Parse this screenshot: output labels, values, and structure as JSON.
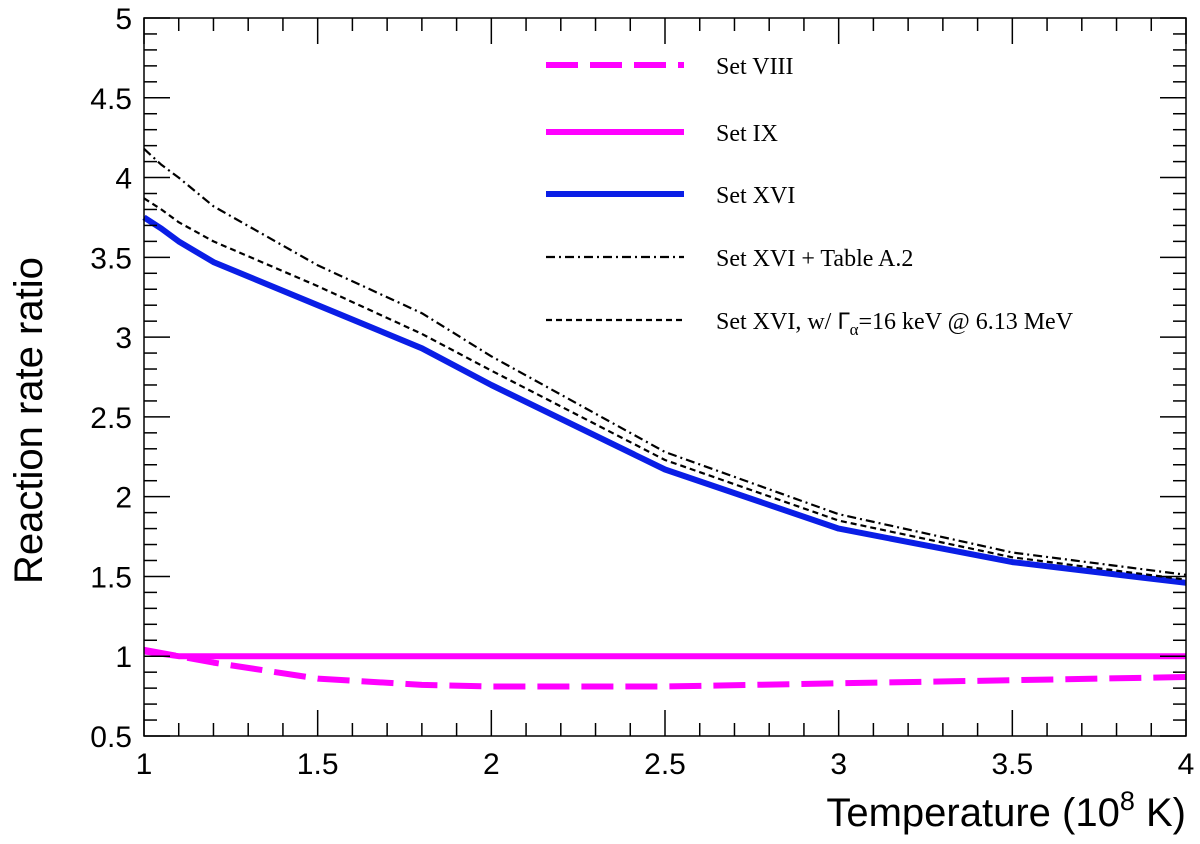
{
  "chart_data": {
    "type": "line",
    "title": "",
    "xlabel": "Temperature (10",
    "xlabel_sup": "8",
    "xlabel_end": " K)",
    "ylabel": "Reaction rate ratio",
    "xlim": [
      1,
      4
    ],
    "ylim": [
      0.5,
      5
    ],
    "x_ticks": [
      "1",
      "1.5",
      "2",
      "2.5",
      "3",
      "3.5",
      "4"
    ],
    "y_ticks": [
      "0.5",
      "1",
      "1.5",
      "2",
      "2.5",
      "3",
      "3.5",
      "4",
      "4.5",
      "5"
    ],
    "grid": false,
    "legend_position": "top-right",
    "series": [
      {
        "name": "Set VIII",
        "label": "Set VIII",
        "color": "#ff00ff",
        "style": "long-dash",
        "x": [
          1.0,
          1.2,
          1.5,
          1.8,
          2.0,
          2.5,
          3.0,
          3.5,
          4.0
        ],
        "y": [
          1.04,
          0.96,
          0.86,
          0.82,
          0.81,
          0.81,
          0.83,
          0.85,
          0.87
        ]
      },
      {
        "name": "Set IX",
        "label": "Set IX",
        "color": "#ff00ff",
        "style": "solid",
        "x": [
          1.0,
          1.1,
          4.0
        ],
        "y": [
          1.03,
          1.0,
          1.0
        ]
      },
      {
        "name": "Set XVI",
        "label": "Set XVI",
        "color": "#0a1ee6",
        "style": "solid-thick",
        "x": [
          1.0,
          1.05,
          1.1,
          1.2,
          1.5,
          1.8,
          2.0,
          2.5,
          3.0,
          3.5,
          4.0
        ],
        "y": [
          3.75,
          3.68,
          3.6,
          3.47,
          3.2,
          2.93,
          2.7,
          2.17,
          1.8,
          1.59,
          1.46
        ]
      },
      {
        "name": "Set XVI + Table A.2",
        "label": "Set XVI + Table A.2",
        "color": "#000000",
        "style": "dash-dot",
        "x": [
          1.0,
          1.05,
          1.1,
          1.2,
          1.5,
          1.8,
          2.0,
          2.5,
          3.0,
          3.5,
          4.0
        ],
        "y": [
          4.18,
          4.08,
          4.0,
          3.82,
          3.45,
          3.15,
          2.88,
          2.28,
          1.89,
          1.65,
          1.51
        ]
      },
      {
        "name": "Set XVI, w/ Γα=16 keV @ 6.13 MeV",
        "label_prefix": "Set XVI, w/ ",
        "label_gamma": "Γ",
        "label_sub": "α",
        "label_suffix": "=16 keV @ 6.13 MeV",
        "color": "#000000",
        "style": "short-dash",
        "x": [
          1.0,
          1.05,
          1.1,
          1.2,
          1.5,
          1.8,
          2.0,
          2.5,
          3.0,
          3.5,
          4.0
        ],
        "y": [
          3.87,
          3.8,
          3.72,
          3.6,
          3.32,
          3.02,
          2.79,
          2.23,
          1.85,
          1.62,
          1.48
        ]
      }
    ]
  }
}
